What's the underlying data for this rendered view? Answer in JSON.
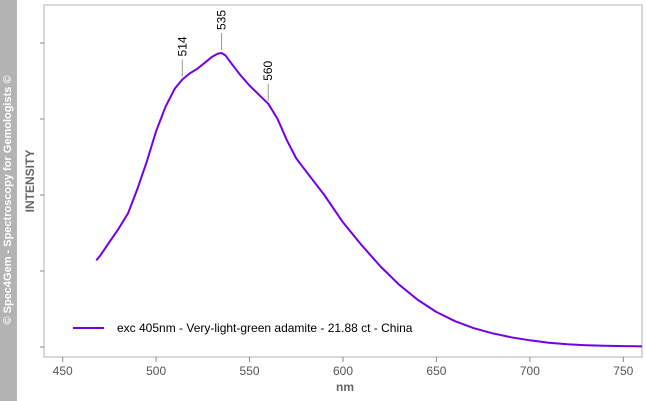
{
  "watermark": "© Spec4Gem - Spectroscopy for Gemologists ©",
  "chart_data": {
    "type": "line",
    "title": "",
    "xlabel": "nm",
    "ylabel": "INTENSITY",
    "xlim": [
      440,
      760
    ],
    "ylim": [
      0,
      1
    ],
    "xticks": [
      450,
      500,
      550,
      600,
      650,
      700,
      750
    ],
    "y_tick_count": 5,
    "y_tick_labels_shown": false,
    "grid": false,
    "legend_position": "bottom-left",
    "series": [
      {
        "name": "exc 405nm - Very-light-green adamite - 21.88 ct - China",
        "color": "#7300e6",
        "x": [
          468,
          470,
          475,
          480,
          485,
          490,
          495,
          500,
          505,
          510,
          514,
          518,
          522,
          526,
          530,
          533,
          535,
          537,
          540,
          545,
          550,
          555,
          560,
          565,
          570,
          575,
          580,
          590,
          600,
          610,
          620,
          630,
          640,
          650,
          660,
          670,
          680,
          690,
          700,
          710,
          720,
          730,
          740,
          750,
          760
        ],
        "y": [
          0.285,
          0.3,
          0.345,
          0.39,
          0.44,
          0.52,
          0.61,
          0.71,
          0.79,
          0.85,
          0.88,
          0.9,
          0.915,
          0.935,
          0.955,
          0.965,
          0.967,
          0.96,
          0.935,
          0.895,
          0.86,
          0.83,
          0.8,
          0.75,
          0.68,
          0.62,
          0.58,
          0.5,
          0.41,
          0.335,
          0.265,
          0.205,
          0.155,
          0.115,
          0.085,
          0.062,
          0.045,
          0.032,
          0.022,
          0.014,
          0.009,
          0.006,
          0.004,
          0.003,
          0.002
        ]
      }
    ],
    "annotations": [
      {
        "x": 514,
        "label": "514"
      },
      {
        "x": 535,
        "label": "535"
      },
      {
        "x": 560,
        "label": "560"
      }
    ]
  }
}
